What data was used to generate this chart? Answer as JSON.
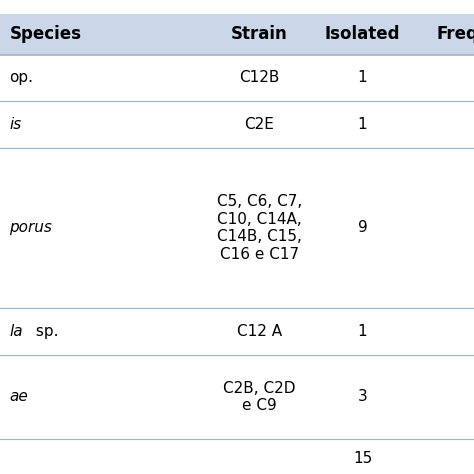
{
  "headers": [
    "Species",
    "Strain",
    "Isolated",
    "Freq"
  ],
  "rows": [
    {
      "species": "op.",
      "species_italic": false,
      "strain": "C12B",
      "isolated": "1"
    },
    {
      "species": "is",
      "species_italic": true,
      "strain": "C2E",
      "isolated": "1"
    },
    {
      "species": "porus",
      "species_italic": true,
      "strain": "C5, C6, C7,\nC10, C14A,\nC14B, C15,\nC16 e C17",
      "isolated": "9"
    },
    {
      "species_part1": "la",
      "species_part2": " sp.",
      "species_italic": false,
      "strain": "C12 A",
      "isolated": "1"
    },
    {
      "species": "ae",
      "species_italic": true,
      "strain": "C2B, C2D\ne C9",
      "isolated": "3"
    }
  ],
  "total_isolated": "15",
  "background_color": "#ffffff",
  "header_bg": "#c9d7e8",
  "line_color": "#a0b4c8",
  "font_size": 11,
  "header_font_size": 12
}
